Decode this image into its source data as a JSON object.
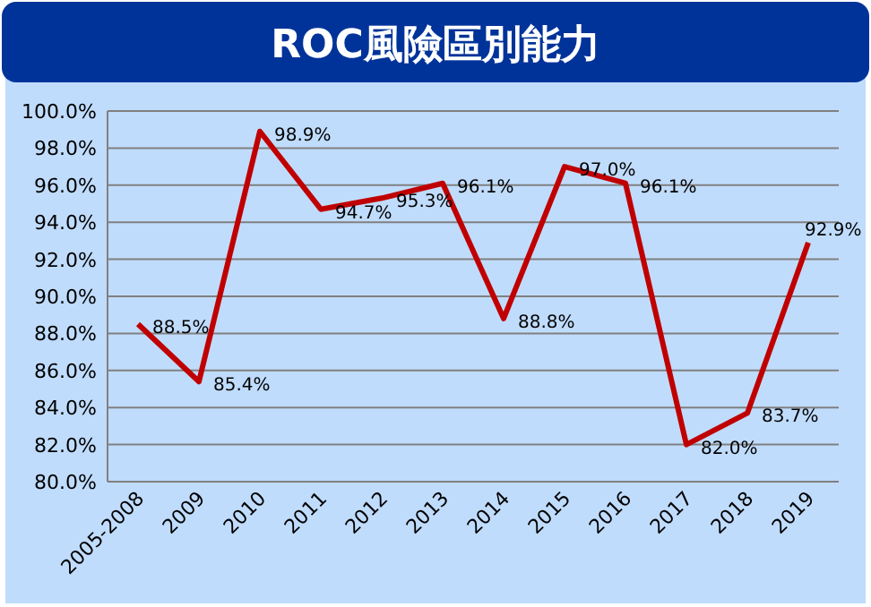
{
  "chart_data": {
    "type": "line",
    "title": "ROC風險區別能力",
    "categories": [
      "2005-2008",
      "2009",
      "2010",
      "2011",
      "2012",
      "2013",
      "2014",
      "2015",
      "2016",
      "2017",
      "2018",
      "2019"
    ],
    "series": [
      {
        "color": "#c00000",
        "values": [
          88.5,
          85.4,
          98.9,
          94.7,
          95.3,
          96.1,
          88.8,
          97.0,
          96.1,
          82.0,
          83.7,
          92.9
        ],
        "value_labels": [
          "88.5%",
          "85.4%",
          "98.9%",
          "94.7%",
          "95.3%",
          "96.1%",
          "88.8%",
          "97.0%",
          "96.1%",
          "82.0%",
          "83.7%",
          "92.9%"
        ]
      }
    ],
    "ylim": [
      80,
      100
    ],
    "yticks": [
      {
        "value": 80,
        "label": "80.0%"
      },
      {
        "value": 82,
        "label": "82.0%"
      },
      {
        "value": 84,
        "label": "84.0%"
      },
      {
        "value": 86,
        "label": "86.0%"
      },
      {
        "value": 88,
        "label": "88.0%"
      },
      {
        "value": 90,
        "label": "90.0%"
      },
      {
        "value": 92,
        "label": "92.0%"
      },
      {
        "value": 94,
        "label": "94.0%"
      },
      {
        "value": 96,
        "label": "96.0%"
      },
      {
        "value": 98,
        "label": "98.0%"
      },
      {
        "value": 100,
        "label": "100.0%"
      }
    ],
    "grid": "y",
    "marker": "none",
    "line_style": "solid"
  }
}
